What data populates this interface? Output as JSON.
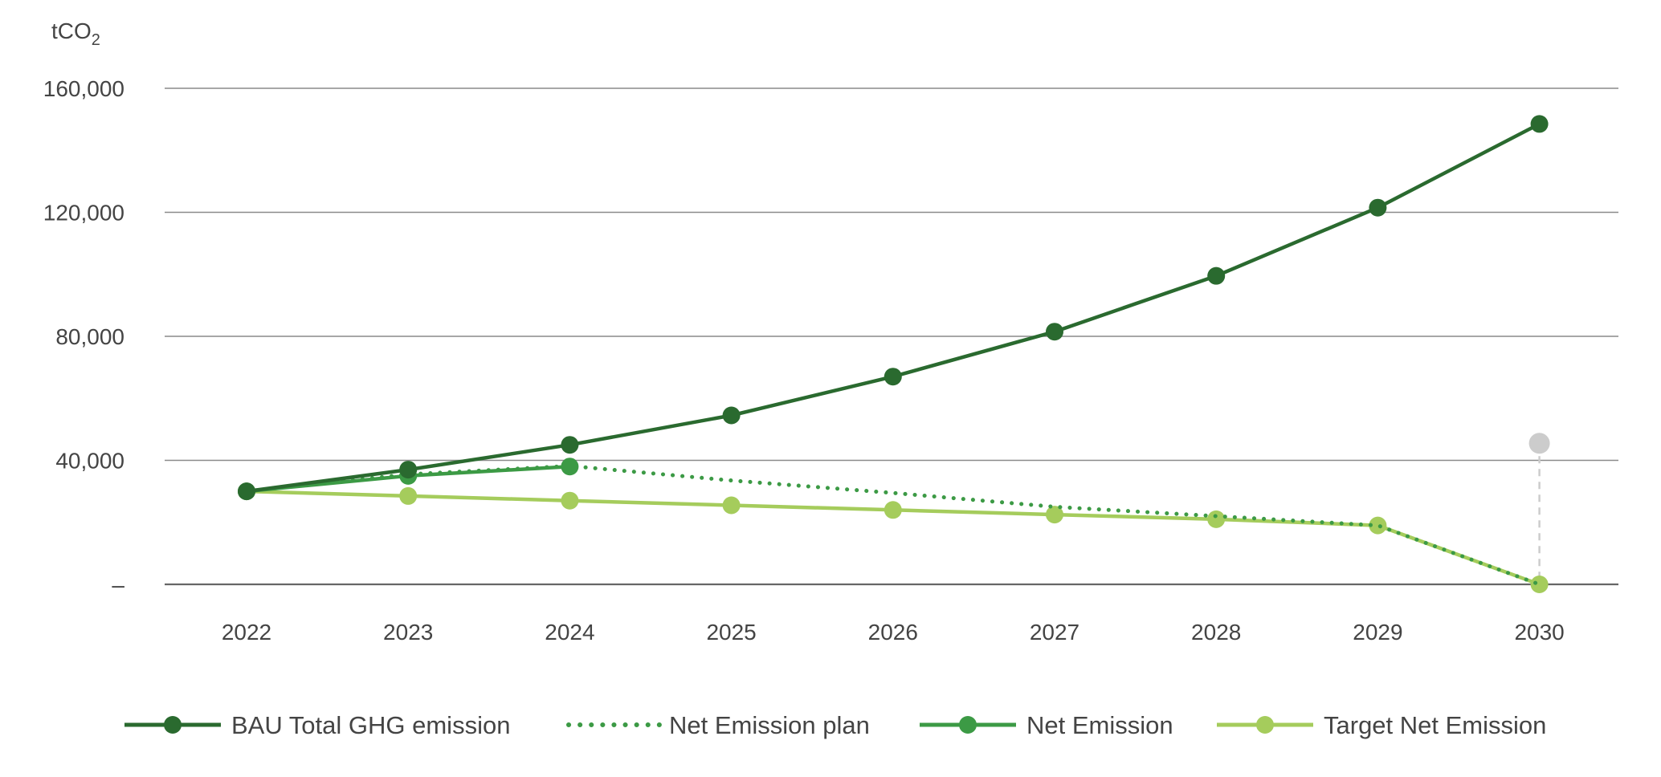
{
  "chart_data": {
    "type": "line",
    "ylabel": "tCO",
    "ylabel_subscript": "2",
    "x": [
      "2022",
      "2023",
      "2024",
      "2025",
      "2026",
      "2027",
      "2028",
      "2029",
      "2030"
    ],
    "y_ticks": [
      0,
      40000,
      80000,
      120000,
      160000
    ],
    "y_tick_labels": [
      "–",
      "40,000",
      "80,000",
      "120,000",
      "160,000"
    ],
    "ylim": [
      0,
      160000
    ],
    "grid": true,
    "legend_position": "bottom",
    "series": [
      {
        "name": "BAU Total GHG emission",
        "style": "solid-markers",
        "color": "#2a6a2f",
        "values": [
          30000,
          37000,
          45000,
          54500,
          67000,
          81500,
          99500,
          121500,
          148500
        ]
      },
      {
        "name": "Net Emission plan",
        "style": "dotted",
        "color": "#3c9a45",
        "values": [
          30000,
          35500,
          38200,
          33500,
          29500,
          25000,
          22000,
          19000,
          0
        ]
      },
      {
        "name": "Net Emission",
        "style": "solid-markers",
        "color": "#3c9a45",
        "values": [
          30000,
          35000,
          38000,
          null,
          null,
          null,
          null,
          null,
          null
        ]
      },
      {
        "name": "Target Net Emission",
        "style": "solid-markers",
        "color": "#a5cc5c",
        "values": [
          30000,
          28500,
          27000,
          25500,
          24000,
          22500,
          21000,
          19000,
          0
        ]
      }
    ],
    "annotations": [
      {
        "x": "2030",
        "value": 45500,
        "to_value": 0,
        "color": "#cccccc",
        "style": "dashed-drop-line"
      }
    ]
  }
}
